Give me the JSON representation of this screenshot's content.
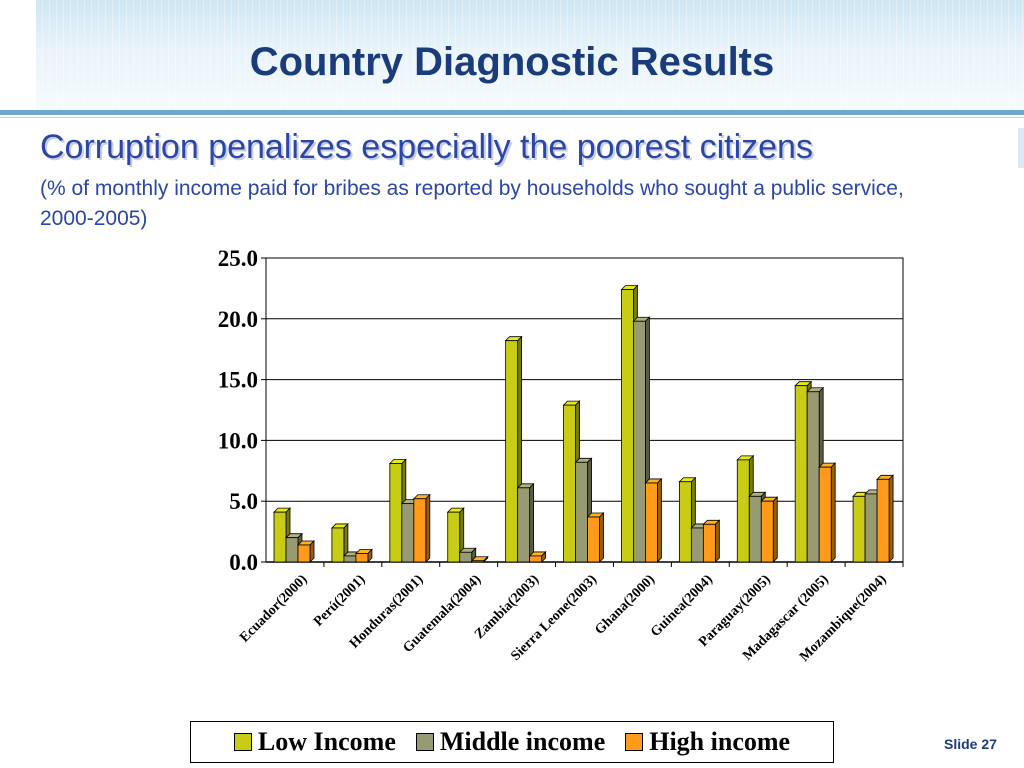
{
  "slide": {
    "title": "Country Diagnostic Results",
    "subtitle": "Corruption penalizes especially the poorest citizens",
    "note": "(% of monthly income paid for bribes as reported by households who sought a public service, 2000-2005)",
    "slide_number": "Slide 27"
  },
  "colors": {
    "low": "#c8cc14",
    "middle": "#989a72",
    "high": "#ff9a1a",
    "title": "#1b3c7a",
    "text": "#2a46a6"
  },
  "chart_data": {
    "type": "bar",
    "title": "",
    "xlabel": "",
    "ylabel": "",
    "ylim": [
      0,
      25
    ],
    "yticks": [
      "0.0",
      "5.0",
      "10.0",
      "15.0",
      "20.0",
      "25.0"
    ],
    "grid": true,
    "legend_position": "bottom",
    "categories": [
      "Ecuador(2000)",
      "Perú(2001)",
      "Honduras(2001)",
      "Guatemala(2004)",
      "Zambia(2003)",
      "Sierra Leone(2003)",
      "Ghana(2000)",
      "Guinea(2004)",
      "Paraguay(2005)",
      "Madagascar (2005)",
      "Mozambique(2004)"
    ],
    "series": [
      {
        "name": "Low Income",
        "values": [
          4.1,
          2.8,
          8.1,
          4.1,
          18.2,
          12.9,
          22.4,
          6.6,
          8.4,
          14.5,
          5.4
        ]
      },
      {
        "name": "Middle income",
        "values": [
          2.0,
          0.5,
          4.8,
          0.8,
          6.1,
          8.2,
          19.8,
          2.8,
          5.4,
          14.0,
          5.6
        ]
      },
      {
        "name": "High income",
        "values": [
          1.4,
          0.7,
          5.2,
          0.1,
          0.5,
          3.7,
          6.5,
          3.1,
          5.0,
          7.8,
          6.8
        ]
      }
    ]
  }
}
